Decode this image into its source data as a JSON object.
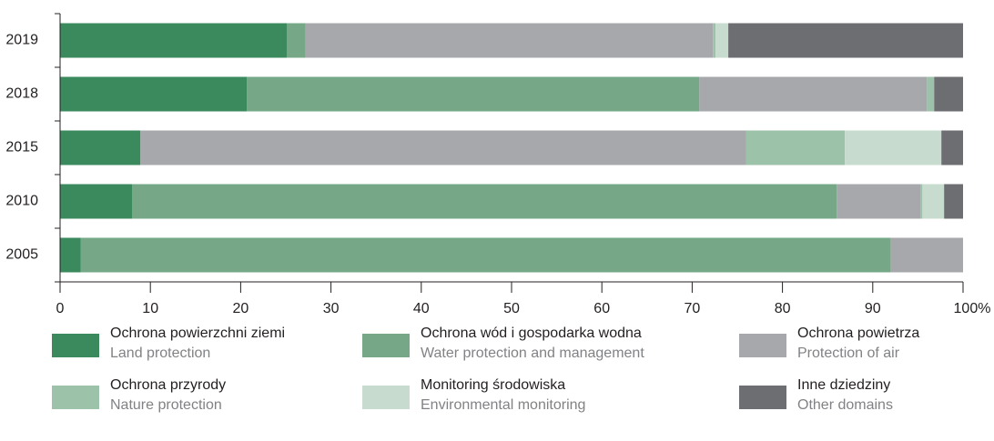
{
  "chart_data": {
    "type": "stacked_barh",
    "categories": [
      "2019",
      "2018",
      "2015",
      "2010",
      "2005"
    ],
    "series": [
      {
        "name": "Ochrona powierzchni ziemi",
        "name_en": "Land protection",
        "color": "#3a8a5e",
        "values": [
          25.1,
          20.7,
          8.9,
          8.0,
          2.3
        ]
      },
      {
        "name": "Ochrona wód i gospodarka wodna",
        "name_en": "Water  protection and management",
        "color": "#76a888",
        "values": [
          2.1,
          50.1,
          0,
          78.0,
          89.7
        ]
      },
      {
        "name": "Ochrona powietrza",
        "name_en": "Protection of air",
        "color": "#a7a8ab",
        "values": [
          45.1,
          25.2,
          67.1,
          9.3,
          8.0
        ]
      },
      {
        "name": "Ochrona przyrody",
        "name_en": "Nature protection",
        "color": "#9dc2aa",
        "values": [
          0.3,
          0.8,
          10.9,
          0.2,
          0
        ]
      },
      {
        "name": "Monitoring  środowiska",
        "name_en": "Environmental monitoring",
        "color": "#c7dccf",
        "values": [
          1.4,
          0,
          10.7,
          2.4,
          0
        ]
      },
      {
        "name": "Inne dziedziny",
        "name_en": "Other domains",
        "color": "#6d6e71",
        "values": [
          26.0,
          3.2,
          2.4,
          2.1,
          0
        ]
      }
    ],
    "xlim": [
      0,
      100
    ],
    "xticks": [
      0,
      10,
      20,
      30,
      40,
      50,
      60,
      70,
      80,
      90,
      {
        "value": 100,
        "label": "100%"
      }
    ]
  }
}
